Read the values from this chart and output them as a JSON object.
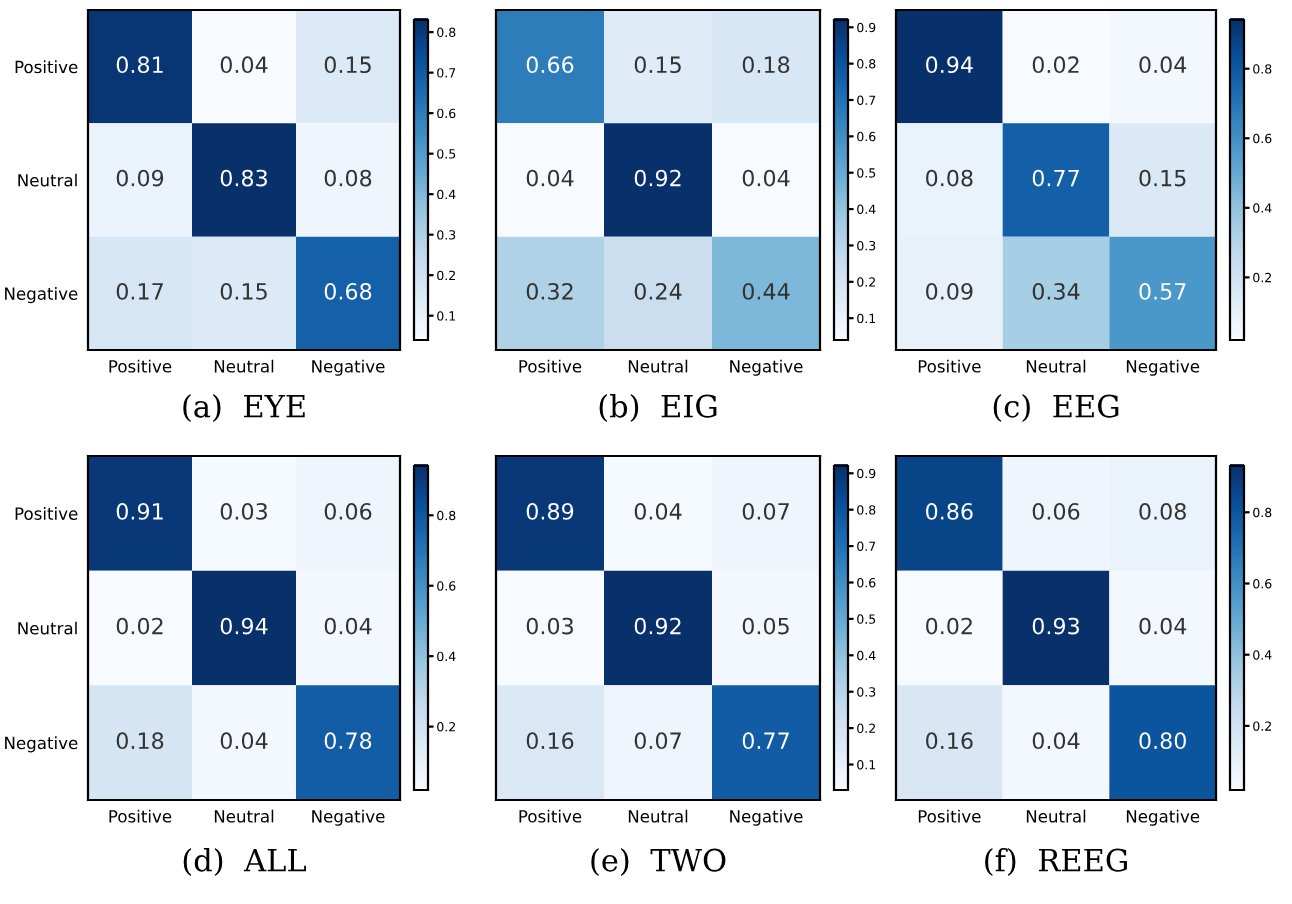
{
  "chart_data": [
    {
      "type": "heatmap",
      "title": "(a)  EYE",
      "categories": [
        "Positive",
        "Neutral",
        "Negative"
      ],
      "y_categories": [
        "Positive",
        "Neutral",
        "Negative"
      ],
      "cells": [
        [
          0.81,
          0.04,
          0.15
        ],
        [
          0.09,
          0.83,
          0.08
        ],
        [
          0.17,
          0.15,
          0.68
        ]
      ],
      "clim": [
        0.04,
        0.83
      ],
      "cticks": [
        0.1,
        0.2,
        0.3,
        0.4,
        0.5,
        0.6,
        0.7,
        0.8
      ],
      "data_labels": true,
      "tick_labels": "xy"
    },
    {
      "type": "heatmap",
      "title": "(b)  EIG",
      "categories": [
        "Positive",
        "Neutral",
        "Negative"
      ],
      "y_categories": [
        null,
        null,
        null
      ],
      "cells": [
        [
          0.66,
          0.15,
          0.18
        ],
        [
          0.04,
          0.92,
          0.04
        ],
        [
          0.32,
          0.24,
          0.44
        ]
      ],
      "clim": [
        0.04,
        0.92
      ],
      "cticks": [
        0.1,
        0.2,
        0.3,
        0.4,
        0.5,
        0.6,
        0.7,
        0.8,
        0.9
      ],
      "data_labels": true,
      "tick_labels": "x"
    },
    {
      "type": "heatmap",
      "title": "(c)  EEG",
      "categories": [
        "Positive",
        "Neutral",
        "Negative"
      ],
      "y_categories": [
        null,
        null,
        null
      ],
      "cells": [
        [
          0.94,
          0.02,
          0.04
        ],
        [
          0.08,
          0.77,
          0.15
        ],
        [
          0.09,
          0.34,
          0.57
        ]
      ],
      "clim": [
        0.02,
        0.94
      ],
      "cticks": [
        0.2,
        0.4,
        0.6,
        0.8
      ],
      "data_labels": true,
      "tick_labels": "x"
    },
    {
      "type": "heatmap",
      "title": "(d)  ALL",
      "categories": [
        "Positive",
        "Neutral",
        "Negative"
      ],
      "y_categories": [
        "Positive",
        "Neutral",
        "Negative"
      ],
      "cells": [
        [
          0.91,
          0.03,
          0.06
        ],
        [
          0.02,
          0.94,
          0.04
        ],
        [
          0.18,
          0.04,
          0.78
        ]
      ],
      "clim": [
        0.02,
        0.94
      ],
      "cticks": [
        0.2,
        0.4,
        0.6,
        0.8
      ],
      "data_labels": true,
      "tick_labels": "xy"
    },
    {
      "type": "heatmap",
      "title": "(e)  TWO",
      "categories": [
        "Positive",
        "Neutral",
        "Negative"
      ],
      "y_categories": [
        null,
        null,
        null
      ],
      "cells": [
        [
          0.89,
          0.04,
          0.07
        ],
        [
          0.03,
          0.92,
          0.05
        ],
        [
          0.16,
          0.07,
          0.77
        ]
      ],
      "clim": [
        0.03,
        0.92
      ],
      "cticks": [
        0.1,
        0.2,
        0.3,
        0.4,
        0.5,
        0.6,
        0.7,
        0.8,
        0.9
      ],
      "data_labels": true,
      "tick_labels": "x"
    },
    {
      "type": "heatmap",
      "title": "(f)  REEG",
      "categories": [
        "Positive",
        "Neutral",
        "Negative"
      ],
      "y_categories": [
        null,
        null,
        null
      ],
      "cells": [
        [
          0.86,
          0.06,
          0.08
        ],
        [
          0.02,
          0.93,
          0.04
        ],
        [
          0.16,
          0.04,
          0.8
        ]
      ],
      "cell_labels": [
        [
          "0.86",
          "0.06",
          "0.08"
        ],
        [
          "0.02",
          "0.93",
          "0.04"
        ],
        [
          "0.16",
          "0.04",
          "0.80"
        ]
      ],
      "clim": [
        0.02,
        0.93
      ],
      "cticks": [
        0.2,
        0.4,
        0.6,
        0.8
      ],
      "data_labels": true,
      "tick_labels": "x"
    }
  ]
}
